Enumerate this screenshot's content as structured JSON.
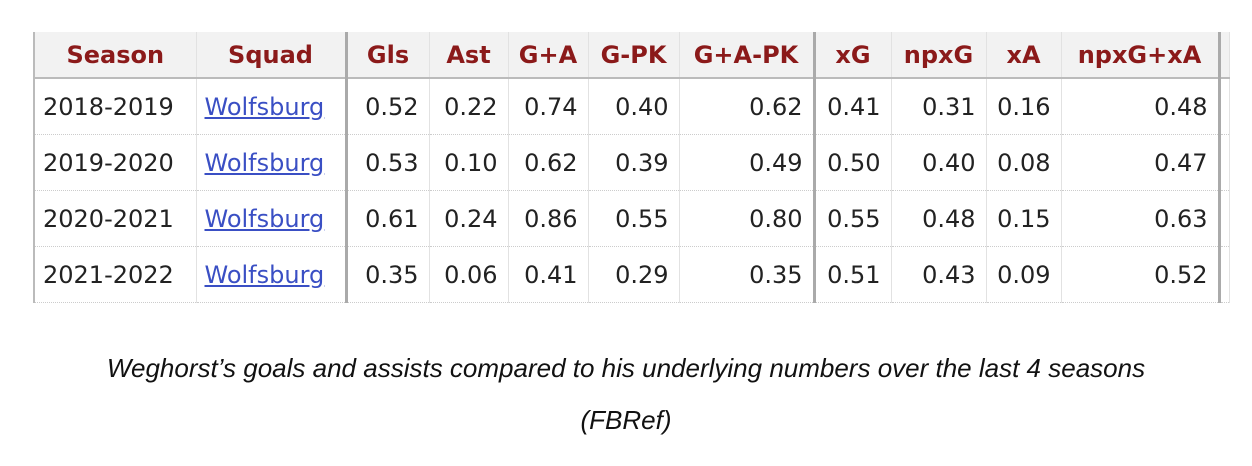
{
  "table": {
    "header": [
      "Season",
      "Squad",
      "Gls",
      "Ast",
      "G+A",
      "G-PK",
      "G+A-PK",
      "xG",
      "npxG",
      "xA",
      "npxG+xA"
    ],
    "rows": [
      [
        "2018-2019",
        "Wolfsburg",
        "0.52",
        "0.22",
        "0.74",
        "0.40",
        "0.62",
        "0.41",
        "0.31",
        "0.16",
        "0.48"
      ],
      [
        "2019-2020",
        "Wolfsburg",
        "0.53",
        "0.10",
        "0.62",
        "0.39",
        "0.49",
        "0.50",
        "0.40",
        "0.08",
        "0.47"
      ],
      [
        "2020-2021",
        "Wolfsburg",
        "0.61",
        "0.24",
        "0.86",
        "0.55",
        "0.80",
        "0.55",
        "0.48",
        "0.15",
        "0.63"
      ],
      [
        "2021-2022",
        "Wolfsburg",
        "0.35",
        "0.06",
        "0.41",
        "0.29",
        "0.35",
        "0.51",
        "0.43",
        "0.09",
        "0.52"
      ]
    ]
  },
  "caption": {
    "lines": [
      "Weghorst’s goals and assists compared to his underlying numbers over the last 4 seasons",
      "(FBRef)"
    ]
  }
}
